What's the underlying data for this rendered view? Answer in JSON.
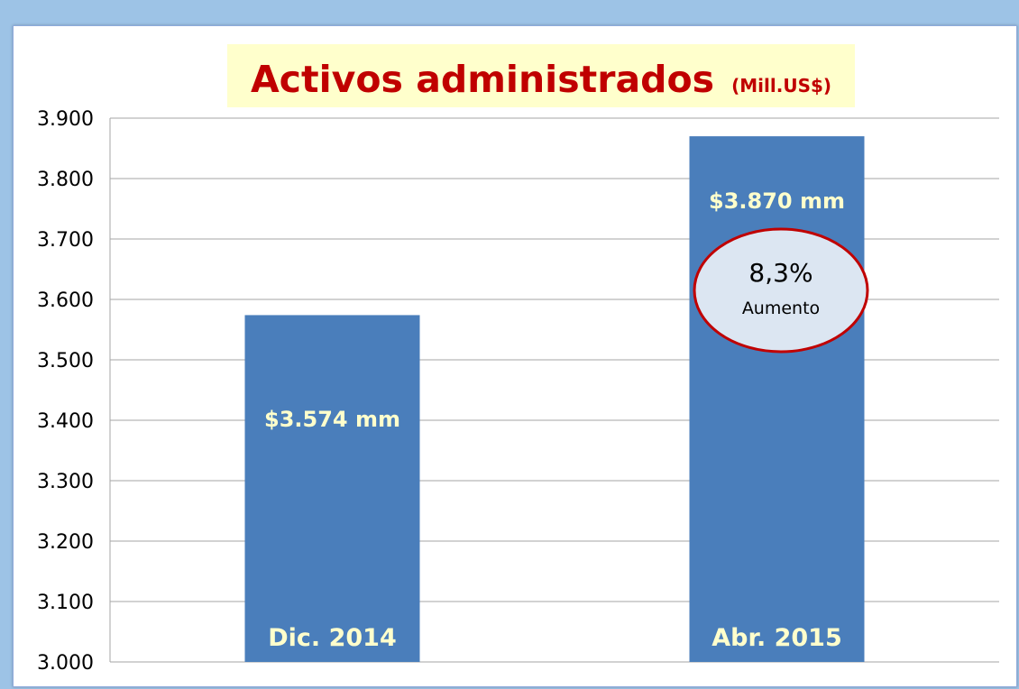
{
  "chart_data": {
    "type": "bar",
    "title": "Activos administrados",
    "title_unit": "(Mill.US$)",
    "categories": [
      "Dic. 2014",
      "Abr. 2015"
    ],
    "values": [
      3574,
      3870
    ],
    "data_labels": [
      "$3.574 mm",
      "$3.870 mm"
    ],
    "ylim": [
      3000,
      3900
    ],
    "yticks": [
      3000,
      3100,
      3200,
      3300,
      3400,
      3500,
      3600,
      3700,
      3800,
      3900
    ],
    "ytick_labels": [
      "3.000",
      "3.100",
      "3.200",
      "3.300",
      "3.400",
      "3.500",
      "3.600",
      "3.700",
      "3.800",
      "3.900"
    ],
    "grid": true,
    "legend": "none",
    "annotation": {
      "value": "8,3%",
      "text": "Aumento"
    },
    "colors": {
      "bar": "#4a7ebb",
      "title": "#c00000",
      "title_background": "#ffffcc",
      "bar_text": "#ffffcc",
      "callout_fill": "#dce6f2",
      "callout_border": "#c00000",
      "page_background": "#9dc3e6",
      "grid": "#a6a6a6"
    }
  }
}
